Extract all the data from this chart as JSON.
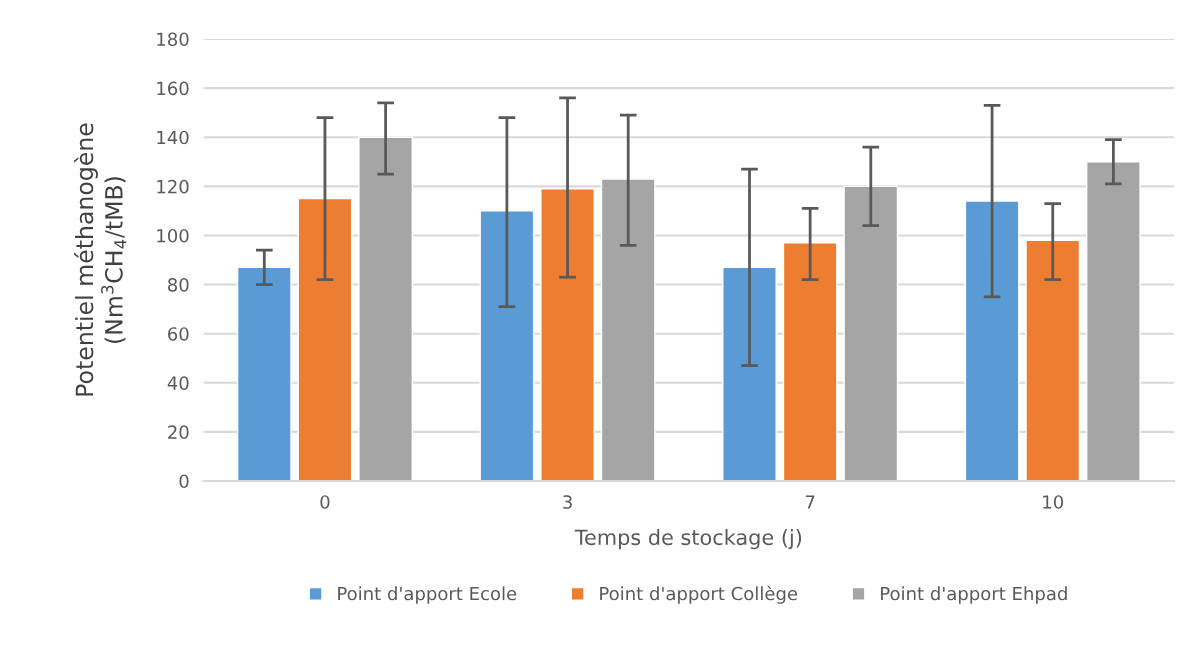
{
  "chart_data": {
    "type": "bar",
    "xlabel": "Temps de stockage (j)",
    "ylabel": "Potentiel méthanogène\n(Nm$^{3}$CH$_{4}$/tMB)",
    "categories": [
      "0",
      "3",
      "7",
      "10"
    ],
    "series": [
      {
        "name": "Point d'apport Ecole",
        "color": "#5b9bd5",
        "values": [
          87,
          110,
          87,
          114
        ],
        "errors": [
          [
            80,
            94
          ],
          [
            71,
            148
          ],
          [
            47,
            127
          ],
          [
            75,
            153
          ]
        ]
      },
      {
        "name": "Point d'apport Collège",
        "color": "#ed7d31",
        "values": [
          115,
          119,
          97,
          98
        ],
        "errors": [
          [
            82,
            148
          ],
          [
            83,
            156
          ],
          [
            82,
            111
          ],
          [
            82,
            113
          ]
        ]
      },
      {
        "name": "Point d'apport Ehpad",
        "color": "#a5a5a5",
        "values": [
          140,
          123,
          120,
          130
        ],
        "errors": [
          [
            125,
            154
          ],
          [
            96,
            149
          ],
          [
            104,
            136
          ],
          [
            121,
            139
          ]
        ]
      }
    ],
    "ylim": [
      0,
      180
    ],
    "yticks": [
      0,
      20,
      40,
      60,
      80,
      100,
      120,
      140,
      160,
      180
    ],
    "grid": "y",
    "legend": "bottom"
  }
}
